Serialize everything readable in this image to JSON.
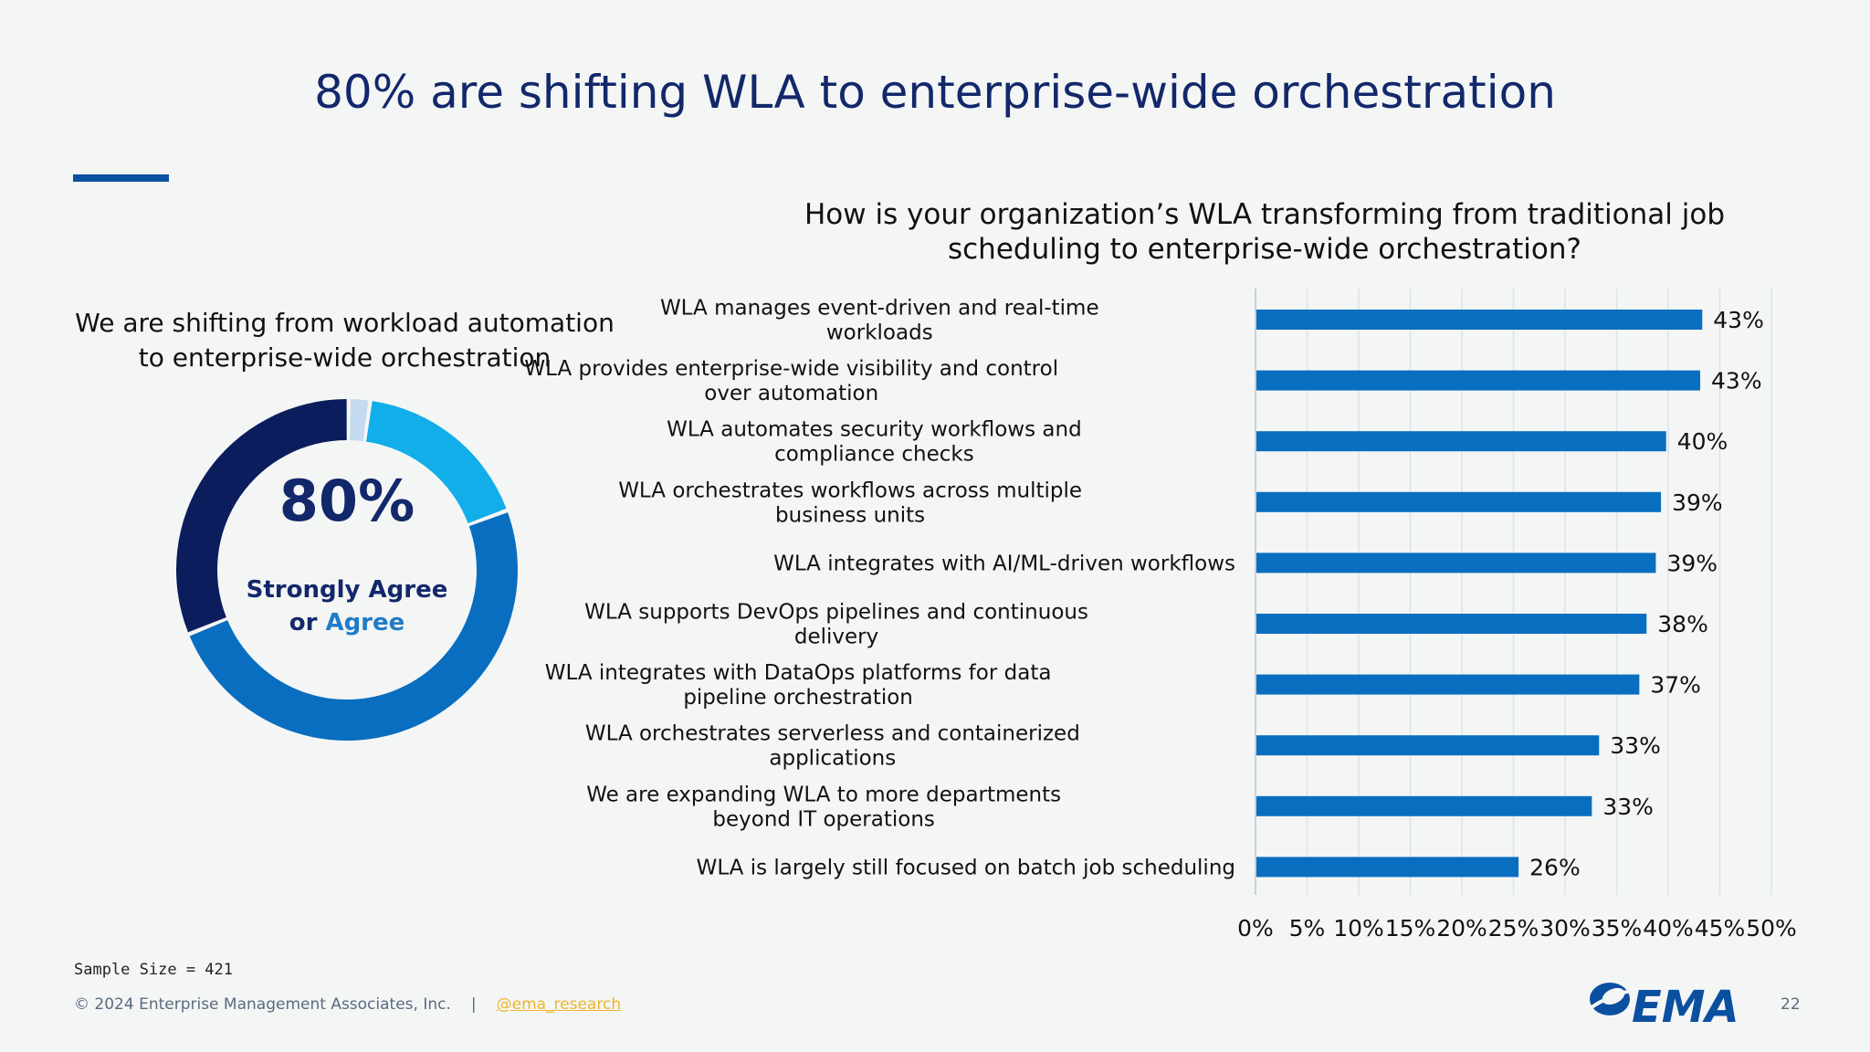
{
  "slide": {
    "title": "80% are shifting WLA to enterprise-wide orchestration",
    "accent_color": "#0b4fa0"
  },
  "donut": {
    "title": "We are shifting from workload automation to enterprise-wide orchestration",
    "big_value": "80%",
    "caption_line1": "Strongly Agree",
    "caption_or": "or",
    "caption_agree": "Agree"
  },
  "question": "How is your organization’s WLA transforming from traditional job scheduling to enterprise-wide orchestration?",
  "chart_data": [
    {
      "type": "pie",
      "variant": "donut",
      "title": "We are shifting from workload automation to enterprise-wide orchestration",
      "center_label": "80%",
      "slices": [
        {
          "value": 2,
          "color": "#c5d9f0"
        },
        {
          "value": 17,
          "color": "#12aeea"
        },
        {
          "value": 49,
          "color": "#0a6ec0"
        },
        {
          "value": 31,
          "color": "#0b1d5c"
        }
      ]
    },
    {
      "type": "bar",
      "orientation": "horizontal",
      "title": "How is your organization’s WLA transforming from traditional job scheduling to enterprise-wide orchestration?",
      "bar_color": "#0a6ec0",
      "categories": [
        [
          "WLA manages event-driven and real-time",
          "workloads"
        ],
        [
          "WLA provides enterprise-wide visibility and control",
          "over automation"
        ],
        [
          "WLA automates security workflows and",
          "compliance checks"
        ],
        [
          "WLA orchestrates workflows across multiple",
          "business units"
        ],
        [
          "WLA integrates with AI/ML-driven workflows"
        ],
        [
          "WLA supports DevOps pipelines and continuous",
          "delivery"
        ],
        [
          "WLA integrates with DataOps platforms for data",
          "pipeline orchestration"
        ],
        [
          "WLA orchestrates serverless and containerized",
          "applications"
        ],
        [
          "We are expanding WLA to more departments",
          "beyond IT operations"
        ],
        [
          "WLA is largely still focused on batch job scheduling"
        ]
      ],
      "values": [
        43.3,
        43.1,
        39.8,
        39.3,
        38.8,
        37.9,
        37.2,
        33.3,
        32.6,
        25.5
      ],
      "data_labels": [
        "43%",
        "43%",
        "40%",
        "39%",
        "39%",
        "38%",
        "37%",
        "33%",
        "33%",
        "26%"
      ],
      "xlim": [
        0,
        50
      ],
      "x_ticks": [
        "0%",
        "5%",
        "10%",
        "15%",
        "20%",
        "25%",
        "30%",
        "35%",
        "40%",
        "45%",
        "50%"
      ],
      "grid": true
    }
  ],
  "footer": {
    "sample_size": "Sample Size = 421",
    "copyright": "© 2024 Enterprise Management Associates, Inc.",
    "separator": "|",
    "handle": "@ema_research",
    "page_number": "22",
    "logo_text": "EMA",
    "logo_icon": "ema-swoosh-logo"
  }
}
